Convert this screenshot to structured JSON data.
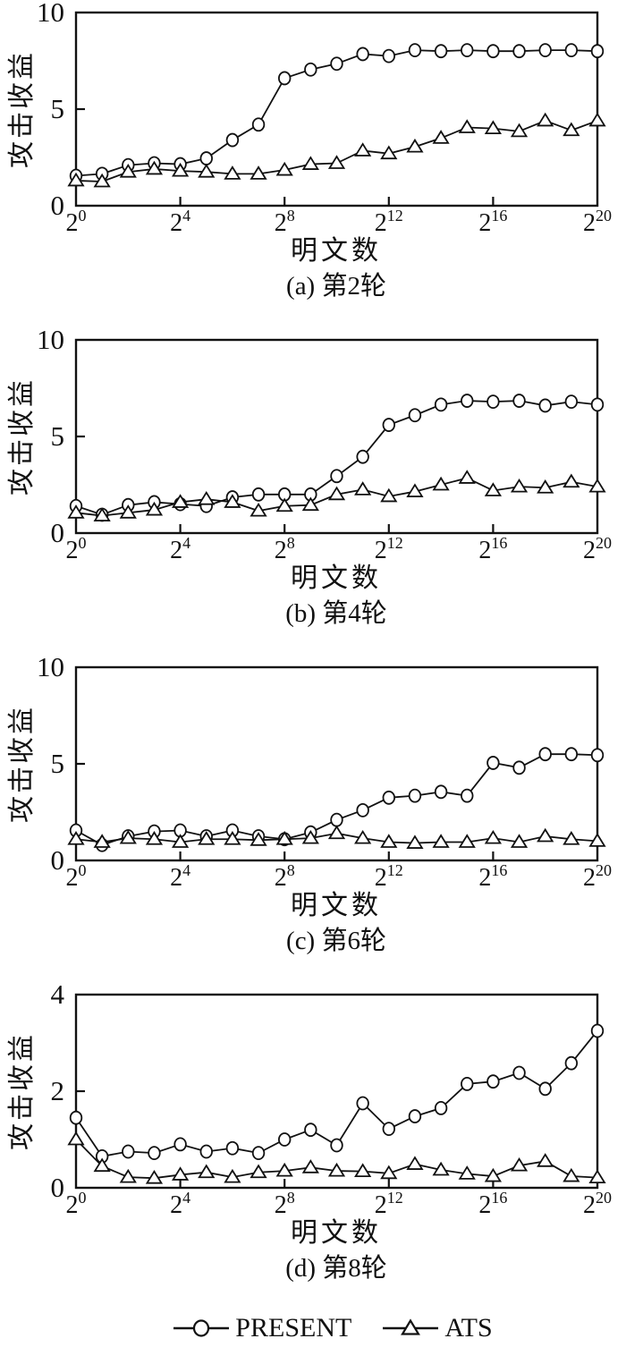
{
  "figure": {
    "legend": {
      "items": [
        {
          "label": "PRESENT",
          "marker": "circle"
        },
        {
          "label": "ATS",
          "marker": "triangle"
        }
      ]
    }
  },
  "chart_data": [
    {
      "type": "line",
      "caption": "(a) 第2轮",
      "xlabel": "明文数",
      "ylabel": "攻击收益",
      "x_base": 2,
      "x": [
        0,
        1,
        2,
        3,
        4,
        5,
        6,
        7,
        8,
        9,
        10,
        11,
        12,
        13,
        14,
        15,
        16,
        17,
        18,
        19,
        20
      ],
      "xlim": [
        0,
        20
      ],
      "ylim": [
        0,
        10
      ],
      "yticks": [
        0,
        5,
        10
      ],
      "xtick_exponents": [
        0,
        4,
        8,
        12,
        16,
        20
      ],
      "grid": false,
      "series": [
        {
          "name": "PRESENT",
          "marker": "circle",
          "values": [
            1.55,
            1.65,
            2.1,
            2.2,
            2.15,
            2.45,
            3.4,
            4.2,
            6.6,
            7.05,
            7.35,
            7.85,
            7.75,
            8.05,
            8.0,
            8.05,
            8.0,
            8.0,
            8.05,
            8.05,
            8.0
          ]
        },
        {
          "name": "ATS",
          "marker": "triangle",
          "values": [
            1.3,
            1.25,
            1.75,
            1.9,
            1.8,
            1.75,
            1.65,
            1.65,
            1.85,
            2.15,
            2.2,
            2.85,
            2.7,
            3.05,
            3.5,
            4.05,
            4.0,
            3.85,
            4.4,
            3.9,
            4.4
          ]
        }
      ]
    },
    {
      "type": "line",
      "caption": "(b) 第4轮",
      "xlabel": "明文数",
      "ylabel": "攻击收益",
      "x_base": 2,
      "x": [
        0,
        1,
        2,
        3,
        4,
        5,
        6,
        7,
        8,
        9,
        10,
        11,
        12,
        13,
        14,
        15,
        16,
        17,
        18,
        19,
        20
      ],
      "xlim": [
        0,
        20
      ],
      "ylim": [
        0,
        10
      ],
      "yticks": [
        0,
        5,
        10
      ],
      "xtick_exponents": [
        0,
        4,
        8,
        12,
        16,
        20
      ],
      "grid": false,
      "series": [
        {
          "name": "PRESENT",
          "marker": "circle",
          "values": [
            1.4,
            0.95,
            1.45,
            1.6,
            1.5,
            1.4,
            1.85,
            2.0,
            2.0,
            2.0,
            2.95,
            3.95,
            5.6,
            6.1,
            6.65,
            6.85,
            6.8,
            6.85,
            6.6,
            6.8,
            6.65
          ]
        },
        {
          "name": "ATS",
          "marker": "triangle",
          "values": [
            1.05,
            0.9,
            1.05,
            1.2,
            1.6,
            1.75,
            1.6,
            1.15,
            1.4,
            1.45,
            2.0,
            2.25,
            1.9,
            2.15,
            2.5,
            2.85,
            2.2,
            2.4,
            2.35,
            2.65,
            2.4
          ]
        }
      ]
    },
    {
      "type": "line",
      "caption": "(c) 第6轮",
      "xlabel": "明文数",
      "ylabel": "攻击收益",
      "x_base": 2,
      "x": [
        0,
        1,
        2,
        3,
        4,
        5,
        6,
        7,
        8,
        9,
        10,
        11,
        12,
        13,
        14,
        15,
        16,
        17,
        18,
        19,
        20
      ],
      "xlim": [
        0,
        20
      ],
      "ylim": [
        0,
        10
      ],
      "yticks": [
        0,
        5,
        10
      ],
      "xtick_exponents": [
        0,
        4,
        8,
        12,
        16,
        20
      ],
      "grid": false,
      "series": [
        {
          "name": "PRESENT",
          "marker": "circle",
          "values": [
            1.55,
            0.8,
            1.25,
            1.5,
            1.55,
            1.25,
            1.55,
            1.25,
            1.1,
            1.45,
            2.1,
            2.6,
            3.25,
            3.35,
            3.55,
            3.35,
            5.05,
            4.8,
            5.5,
            5.5,
            5.45
          ]
        },
        {
          "name": "ATS",
          "marker": "triangle",
          "values": [
            1.1,
            0.95,
            1.15,
            1.1,
            0.95,
            1.1,
            1.1,
            1.05,
            1.1,
            1.15,
            1.4,
            1.15,
            0.95,
            0.9,
            0.95,
            0.95,
            1.15,
            0.95,
            1.25,
            1.1,
            1.0
          ]
        }
      ]
    },
    {
      "type": "line",
      "caption": "(d) 第8轮",
      "xlabel": "明文数",
      "ylabel": "攻击收益",
      "x_base": 2,
      "x": [
        0,
        1,
        2,
        3,
        4,
        5,
        6,
        7,
        8,
        9,
        10,
        11,
        12,
        13,
        14,
        15,
        16,
        17,
        18,
        19,
        20
      ],
      "xlim": [
        0,
        20
      ],
      "ylim": [
        0,
        4
      ],
      "yticks": [
        0,
        2,
        4
      ],
      "xtick_exponents": [
        0,
        4,
        8,
        12,
        16,
        20
      ],
      "grid": false,
      "series": [
        {
          "name": "PRESENT",
          "marker": "circle",
          "values": [
            1.45,
            0.65,
            0.75,
            0.72,
            0.9,
            0.75,
            0.82,
            0.72,
            1.0,
            1.2,
            0.88,
            1.75,
            1.22,
            1.48,
            1.65,
            2.15,
            2.2,
            2.38,
            2.05,
            2.58,
            3.25
          ]
        },
        {
          "name": "ATS",
          "marker": "triangle",
          "values": [
            1.0,
            0.45,
            0.22,
            0.2,
            0.27,
            0.32,
            0.22,
            0.32,
            0.35,
            0.42,
            0.35,
            0.34,
            0.3,
            0.49,
            0.37,
            0.29,
            0.24,
            0.46,
            0.55,
            0.24,
            0.21
          ]
        }
      ]
    }
  ]
}
